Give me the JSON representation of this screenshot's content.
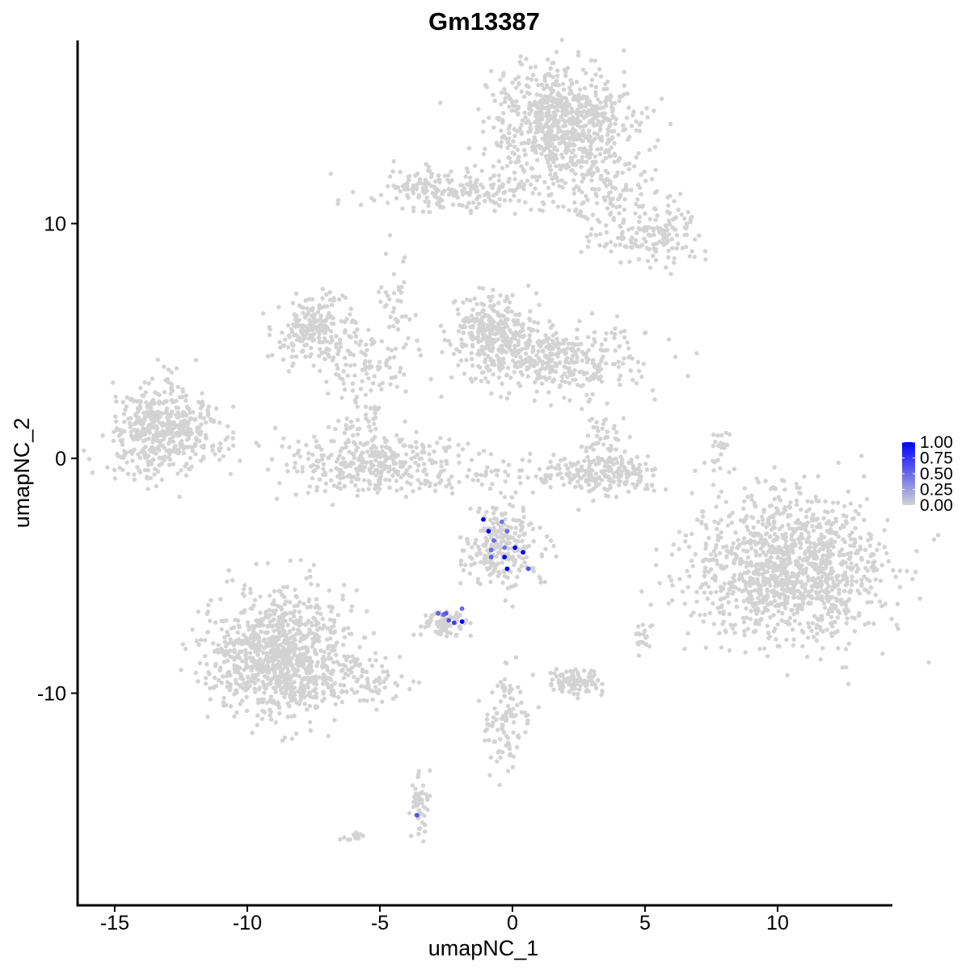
{
  "chart_data": {
    "type": "scatter",
    "title": "Gm13387",
    "xlabel": "umapNC_1",
    "ylabel": "umapNC_2",
    "xlim": [
      -16.4,
      14.3
    ],
    "ylim": [
      -19.0,
      17.8
    ],
    "x_ticks": [
      -15,
      -10,
      -5,
      0,
      5,
      10
    ],
    "x_tick_labels": [
      "-15",
      "-10",
      "-5",
      "0",
      "5",
      "10"
    ],
    "y_ticks": [
      10,
      0,
      -10
    ],
    "y_tick_labels": [
      "10",
      "0",
      "-10"
    ],
    "grid": false,
    "background_color": "#D3D3D3",
    "color_scale": {
      "low_color": "#D3D3D3",
      "high_color": "#0000FF",
      "min": 0,
      "max": 1,
      "breaks": [
        1.0,
        0.75,
        0.5,
        0.25,
        0.0
      ],
      "break_labels": [
        "1.00",
        "0.75",
        "0.50",
        "0.25",
        "0.00"
      ],
      "legend_position": "right"
    },
    "clusters": [
      {
        "cx": 1.8,
        "cy": 14.3,
        "sx": 1.3,
        "sy": 1.2,
        "n": 750
      },
      {
        "cx": -2.3,
        "cy": 11.4,
        "sx": 1.6,
        "sy": 0.5,
        "n": 200
      },
      {
        "cx": 3.5,
        "cy": 11.4,
        "sx": 1.4,
        "sy": 0.9,
        "n": 150
      },
      {
        "cx": 5.2,
        "cy": 9.6,
        "sx": 1.0,
        "sy": 0.6,
        "n": 150
      },
      {
        "cx": -13.2,
        "cy": 1.2,
        "sx": 1.0,
        "sy": 0.9,
        "n": 500
      },
      {
        "cx": -7.5,
        "cy": 5.5,
        "sx": 0.8,
        "sy": 0.6,
        "n": 200
      },
      {
        "cx": -5.5,
        "cy": 4.0,
        "sx": 1.0,
        "sy": 0.8,
        "n": 100
      },
      {
        "cx": -0.7,
        "cy": 5.4,
        "sx": 0.8,
        "sy": 0.8,
        "n": 300
      },
      {
        "cx": 1.8,
        "cy": 4.2,
        "sx": 1.6,
        "sy": 0.7,
        "n": 350
      },
      {
        "cx": -5.2,
        "cy": -0.3,
        "sx": 1.8,
        "sy": 0.6,
        "n": 350
      },
      {
        "cx": -5.5,
        "cy": 1.3,
        "sx": 0.5,
        "sy": 0.8,
        "n": 60
      },
      {
        "cx": 3.3,
        "cy": -0.7,
        "sx": 1.1,
        "sy": 0.4,
        "n": 200
      },
      {
        "cx": 3.4,
        "cy": 0.8,
        "sx": 0.5,
        "sy": 0.8,
        "n": 60
      },
      {
        "cx": 10.3,
        "cy": -4.8,
        "sx": 1.8,
        "sy": 1.6,
        "n": 1200
      },
      {
        "cx": -0.4,
        "cy": -3.7,
        "sx": 0.7,
        "sy": 0.9,
        "n": 250
      },
      {
        "cx": -2.6,
        "cy": -7.0,
        "sx": 0.5,
        "sy": 0.3,
        "n": 80
      },
      {
        "cx": -8.8,
        "cy": -8.3,
        "sx": 1.3,
        "sy": 1.3,
        "n": 900
      },
      {
        "cx": -6.5,
        "cy": -9.3,
        "sx": 1.3,
        "sy": 0.6,
        "n": 150
      },
      {
        "cx": 2.4,
        "cy": -9.5,
        "sx": 0.5,
        "sy": 0.3,
        "n": 100
      },
      {
        "cx": -0.2,
        "cy": -11.0,
        "sx": 0.4,
        "sy": 1.1,
        "n": 100
      },
      {
        "cx": -3.5,
        "cy": -14.8,
        "sx": 0.2,
        "sy": 0.8,
        "n": 50
      },
      {
        "cx": 7.8,
        "cy": 0.3,
        "sx": 0.2,
        "sy": 0.5,
        "n": 20
      },
      {
        "cx": -4.4,
        "cy": 6.5,
        "sx": 0.3,
        "sy": 0.9,
        "n": 40
      },
      {
        "cx": -0.3,
        "cy": -0.7,
        "sx": 1.2,
        "sy": 0.3,
        "n": 30
      },
      {
        "cx": 5.0,
        "cy": -7.6,
        "sx": 0.2,
        "sy": 0.3,
        "n": 20
      },
      {
        "cx": -6.0,
        "cy": -16.2,
        "sx": 0.2,
        "sy": 0.1,
        "n": 15
      }
    ],
    "expressing_points": [
      {
        "x": -1.1,
        "y": -2.6,
        "v": 1.0
      },
      {
        "x": -0.9,
        "y": -3.1,
        "v": 1.0
      },
      {
        "x": -0.4,
        "y": -2.7,
        "v": 0.45
      },
      {
        "x": -0.7,
        "y": -3.5,
        "v": 0.5
      },
      {
        "x": -0.2,
        "y": -3.1,
        "v": 0.5
      },
      {
        "x": -0.3,
        "y": -3.8,
        "v": 0.45
      },
      {
        "x": 0.1,
        "y": -3.8,
        "v": 1.0
      },
      {
        "x": 0.4,
        "y": -4.0,
        "v": 1.0
      },
      {
        "x": -0.3,
        "y": -4.2,
        "v": 1.0
      },
      {
        "x": -0.8,
        "y": -3.9,
        "v": 0.5
      },
      {
        "x": -0.8,
        "y": -4.2,
        "v": 0.55
      },
      {
        "x": -0.2,
        "y": -4.7,
        "v": 1.0
      },
      {
        "x": 0.6,
        "y": -4.7,
        "v": 0.6
      },
      {
        "x": -2.8,
        "y": -6.6,
        "v": 0.55
      },
      {
        "x": -2.6,
        "y": -6.65,
        "v": 0.5
      },
      {
        "x": -2.5,
        "y": -6.6,
        "v": 0.6
      },
      {
        "x": -1.9,
        "y": -6.4,
        "v": 0.5
      },
      {
        "x": -2.4,
        "y": -6.9,
        "v": 0.6
      },
      {
        "x": -2.2,
        "y": -7.0,
        "v": 0.7
      },
      {
        "x": -1.9,
        "y": -6.95,
        "v": 1.0
      },
      {
        "x": -3.6,
        "y": -15.2,
        "v": 0.6
      }
    ]
  }
}
